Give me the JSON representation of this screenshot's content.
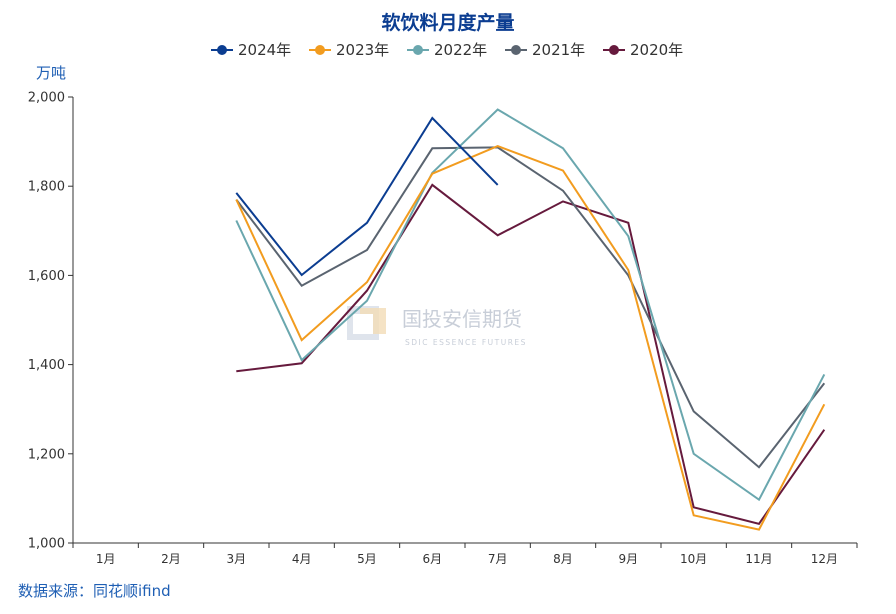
{
  "chart_data": {
    "type": "line",
    "title": "软饮料月度产量",
    "unit": "万吨",
    "categories": [
      "1月",
      "2月",
      "3月",
      "4月",
      "5月",
      "6月",
      "7月",
      "8月",
      "9月",
      "10月",
      "11月",
      "12月"
    ],
    "ylim": [
      1000,
      2000
    ],
    "yticks": [
      1000,
      1200,
      1400,
      1600,
      1800,
      2000
    ],
    "ytick_labels": [
      "1,000",
      "1,200",
      "1,400",
      "1,600",
      "1,800",
      "2,000"
    ],
    "legend_position": "top-center",
    "grid": false,
    "series": [
      {
        "name": "2024年",
        "color": "#0b3d91",
        "values": [
          null,
          null,
          1785,
          1601,
          1718,
          1953,
          1803,
          null,
          null,
          null,
          null,
          null
        ]
      },
      {
        "name": "2023年",
        "color": "#f29c1f",
        "values": [
          null,
          null,
          1770,
          1455,
          1585,
          1828,
          1890,
          1835,
          1612,
          1062,
          1030,
          1311
        ]
      },
      {
        "name": "2022年",
        "color": "#6aa7ae",
        "values": [
          null,
          null,
          1723,
          1410,
          1543,
          1830,
          1972,
          1885,
          1688,
          1200,
          1097,
          1378
        ]
      },
      {
        "name": "2021年",
        "color": "#5a6470",
        "values": [
          null,
          null,
          1770,
          1577,
          1657,
          1885,
          1887,
          1790,
          1600,
          1295,
          1170,
          1358
        ]
      },
      {
        "name": "2020年",
        "color": "#661a3d",
        "values": [
          null,
          null,
          1385,
          1403,
          1566,
          1803,
          1690,
          1766,
          1718,
          1080,
          1043,
          1254
        ]
      }
    ]
  },
  "source": "数据来源：同花顺ifind",
  "watermark": {
    "name_cn": "国投安信期货",
    "name_en": "SDIC ESSENCE FUTURES"
  },
  "colors": {
    "title": "#0b3d91",
    "accent_text": "#1f5fb4",
    "axis": "#333333"
  }
}
